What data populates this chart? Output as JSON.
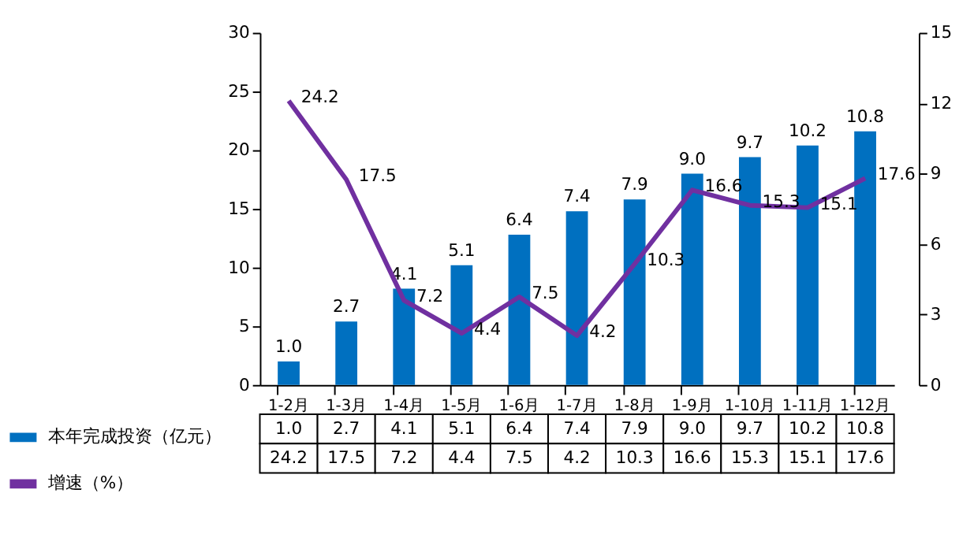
{
  "chart_data": {
    "type": "bar",
    "categories": [
      "1-2月",
      "1-3月",
      "1-4月",
      "1-5月",
      "1-6月",
      "1-7月",
      "1-8月",
      "1-9月",
      "1-10月",
      "1-11月",
      "1-12月"
    ],
    "series": [
      {
        "name": "本年完成投资（亿元）",
        "axis": "y2",
        "color": "#0070c0",
        "values": [
          1.0,
          2.7,
          4.1,
          5.1,
          6.4,
          7.4,
          7.9,
          9.0,
          9.7,
          10.2,
          10.8
        ],
        "value_labels": [
          "1.0",
          "2.7",
          "4.1",
          "5.1",
          "6.4",
          "7.4",
          "7.9",
          "9.0",
          "9.7",
          "10.2",
          "10.8"
        ]
      },
      {
        "name": "增速（%）",
        "type": "line",
        "axis": "y",
        "color": "#7030a0",
        "values": [
          24.2,
          17.5,
          7.2,
          4.4,
          7.5,
          4.2,
          10.3,
          16.6,
          15.3,
          15.1,
          17.6
        ],
        "value_labels": [
          "24.2",
          "17.5",
          "7.2",
          "4.4",
          "7.5",
          "4.2",
          "10.3",
          "16.6",
          "15.3",
          "15.1",
          "17.6"
        ]
      }
    ],
    "ylim": [
      0,
      30
    ],
    "yticks": [
      0,
      5,
      10,
      15,
      20,
      25,
      30
    ],
    "y2lim": [
      0,
      15
    ],
    "y2ticks": [
      0,
      3,
      6,
      9,
      12,
      15
    ],
    "data_labels": true,
    "legend": "bottom left",
    "grid": false
  }
}
